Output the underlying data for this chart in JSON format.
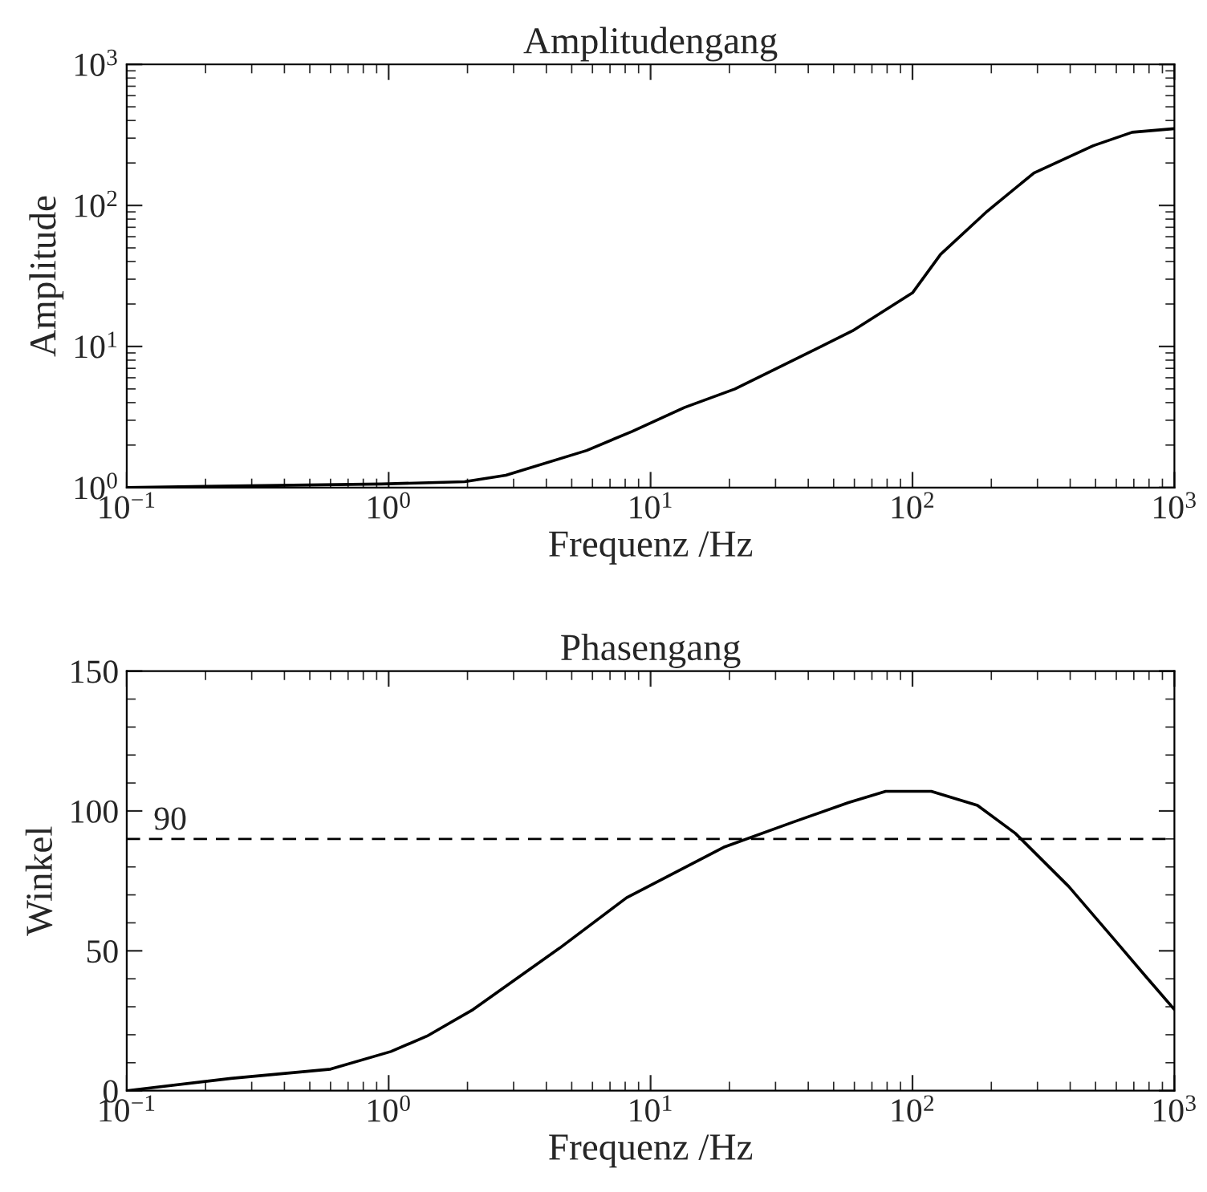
{
  "chart_data": [
    {
      "type": "line",
      "title": "Amplitudengang",
      "xlabel": "Frequenz /Hz",
      "ylabel": "Amplitude",
      "log": "xy",
      "grid": false,
      "x": [
        0.1,
        0.94,
        1.95,
        2.8,
        5.7,
        8.5,
        13.5,
        21,
        39,
        59,
        100,
        128,
        193,
        291,
        490,
        690,
        1000
      ],
      "series": [
        {
          "color": "#000000",
          "values": [
            1.0,
            1.06,
            1.1,
            1.22,
            1.83,
            2.5,
            3.7,
            5.0,
            8.8,
            12.9,
            24,
            45,
            91,
            170,
            265,
            330,
            350
          ]
        }
      ],
      "xlim": [
        0.1,
        1000
      ],
      "ylim": [
        1,
        1000
      ],
      "xticks": [
        {
          "value": 0.1,
          "label": "10$^{−1}$"
        },
        {
          "value": 1,
          "label": "10$^{0}$"
        },
        {
          "value": 10,
          "label": "10$^{1}$"
        },
        {
          "value": 100,
          "label": "10$^{2}$"
        },
        {
          "value": 1000,
          "label": "10$^{3}$"
        }
      ],
      "yticks": [
        {
          "value": 1,
          "label": "10$^{0}$"
        },
        {
          "value": 10,
          "label": "10$^{1}$"
        },
        {
          "value": 100,
          "label": "10$^{2}$"
        },
        {
          "value": 1000,
          "label": "10$^{3}$"
        }
      ]
    },
    {
      "type": "line",
      "title": "Phasengang",
      "xlabel": "Frequenz /Hz",
      "ylabel": "Winkel",
      "log": "x",
      "grid": false,
      "x": [
        0.1,
        0.25,
        0.6,
        1.02,
        1.4,
        2.1,
        4.5,
        8.1,
        19,
        35,
        57,
        79,
        118,
        177,
        247,
        395,
        590,
        775,
        1000
      ],
      "series": [
        {
          "color": "#000000",
          "values": [
            0,
            4.4,
            7.7,
            14,
            19.5,
            29,
            51,
            69,
            87,
            96,
            103,
            107,
            107,
            102,
            92,
            73,
            54,
            41,
            29
          ]
        }
      ],
      "xlim": [
        0.1,
        1000
      ],
      "ylim": [
        0,
        150
      ],
      "xticks": [
        {
          "value": 0.1,
          "label": "10$^{−1}$"
        },
        {
          "value": 1,
          "label": "10$^{0}$"
        },
        {
          "value": 10,
          "label": "10$^{1}$"
        },
        {
          "value": 100,
          "label": "10$^{2}$"
        },
        {
          "value": 1000,
          "label": "10$^{3}$"
        }
      ],
      "yticks": [
        0,
        50,
        100,
        150
      ],
      "ref_lines": [
        {
          "axis": "y",
          "value": 90,
          "label": "90",
          "color": "#000000",
          "line_style": "dashed"
        }
      ]
    }
  ]
}
